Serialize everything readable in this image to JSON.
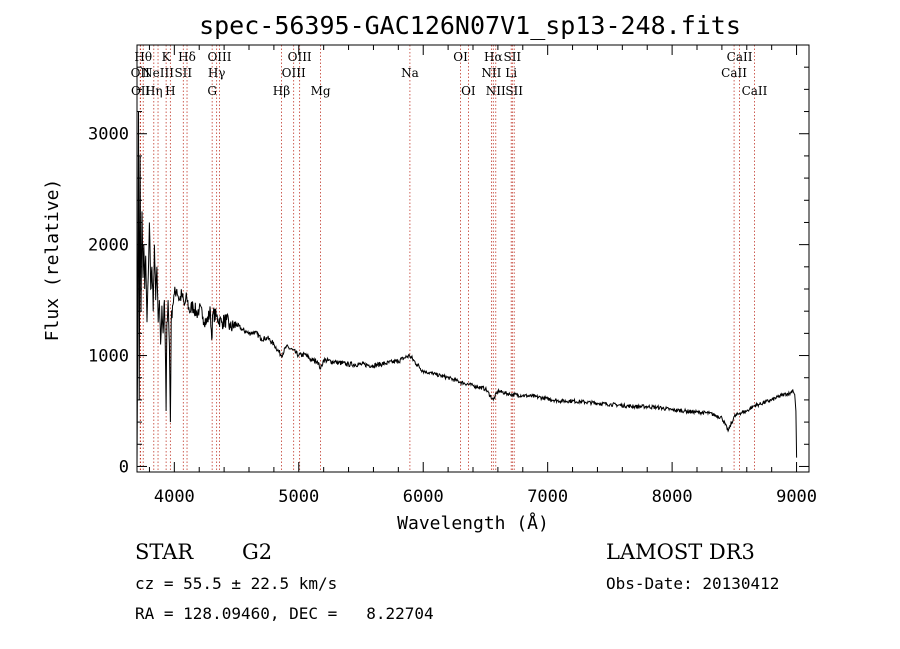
{
  "chart_data": {
    "type": "line",
    "title": "spec-56395-GAC126N07V1_sp13-248.fits",
    "xlabel": "Wavelength (Å)",
    "ylabel": "Flux (relative)",
    "xlim": [
      3700,
      9100
    ],
    "ylim": [
      -50,
      3800
    ],
    "x_ticks": [
      4000,
      5000,
      6000,
      7000,
      8000,
      9000
    ],
    "y_ticks": [
      0,
      1000,
      2000,
      3000
    ],
    "grid": false,
    "series": [
      {
        "name": "spectrum",
        "x": [
          3700,
          3705,
          3712,
          3718,
          3725,
          3732,
          3740,
          3748,
          3755,
          3762,
          3770,
          3780,
          3790,
          3800,
          3810,
          3820,
          3830,
          3840,
          3850,
          3860,
          3870,
          3880,
          3890,
          3900,
          3910,
          3920,
          3930,
          3934,
          3940,
          3950,
          3960,
          3968,
          3975,
          3985,
          4000,
          4020,
          4040,
          4060,
          4080,
          4100,
          4120,
          4150,
          4180,
          4200,
          4230,
          4260,
          4290,
          4300,
          4310,
          4340,
          4380,
          4420,
          4450,
          4500,
          4550,
          4600,
          4650,
          4700,
          4750,
          4800,
          4861,
          4900,
          4950,
          5000,
          5050,
          5100,
          5150,
          5175,
          5200,
          5300,
          5400,
          5500,
          5600,
          5700,
          5800,
          5850,
          5890,
          5950,
          6000,
          6100,
          6200,
          6300,
          6400,
          6500,
          6563,
          6600,
          6700,
          6800,
          6900,
          7000,
          7100,
          7200,
          7300,
          7400,
          7500,
          7600,
          7700,
          7800,
          7900,
          8000,
          8100,
          8200,
          8300,
          8400,
          8450,
          8500,
          8542,
          8600,
          8662,
          8700,
          8800,
          8900,
          8950,
          8970,
          8985,
          8995,
          9000
        ],
        "values": [
          0,
          1000,
          3200,
          600,
          2800,
          1400,
          2300,
          1700,
          2000,
          1600,
          1900,
          1300,
          1700,
          2200,
          1600,
          1800,
          1400,
          2000,
          1500,
          1800,
          1300,
          1500,
          1100,
          1450,
          1200,
          1500,
          900,
          500,
          1300,
          1500,
          1100,
          400,
          1300,
          1450,
          1550,
          1600,
          1500,
          1550,
          1450,
          1520,
          1400,
          1450,
          1380,
          1420,
          1350,
          1300,
          1400,
          1150,
          1380,
          1350,
          1300,
          1320,
          1250,
          1280,
          1230,
          1200,
          1210,
          1150,
          1160,
          1100,
          1000,
          1080,
          1050,
          1000,
          1010,
          960,
          950,
          880,
          960,
          940,
          920,
          920,
          910,
          930,
          950,
          980,
          1000,
          920,
          860,
          830,
          800,
          760,
          730,
          700,
          600,
          680,
          650,
          640,
          630,
          610,
          590,
          590,
          580,
          570,
          560,
          550,
          540,
          540,
          530,
          510,
          500,
          490,
          480,
          440,
          320,
          450,
          480,
          500,
          550,
          560,
          600,
          650,
          660,
          690,
          650,
          500,
          80
        ]
      }
    ],
    "lines": [
      {
        "wl": 3726,
        "label": "OII",
        "row": 2
      },
      {
        "wl": 3729,
        "label": "OII",
        "row": 3
      },
      {
        "wl": 3750,
        "label": "Hθ",
        "row": 1
      },
      {
        "wl": 3835,
        "label": "Hη",
        "row": 3
      },
      {
        "wl": 3869,
        "label": "NeIII",
        "row": 2
      },
      {
        "wl": 3934,
        "label": "K",
        "row": 1
      },
      {
        "wl": 3968,
        "label": "H",
        "row": 3
      },
      {
        "wl": 4072,
        "label": "SII",
        "row": 2
      },
      {
        "wl": 4102,
        "label": "Hδ",
        "row": 1
      },
      {
        "wl": 4304,
        "label": "G",
        "row": 3
      },
      {
        "wl": 4340,
        "label": "Hγ",
        "row": 2
      },
      {
        "wl": 4363,
        "label": "OIII",
        "row": 1
      },
      {
        "wl": 4861,
        "label": "Hβ",
        "row": 3
      },
      {
        "wl": 4959,
        "label": "OIII",
        "row": 2
      },
      {
        "wl": 5007,
        "label": "OIII",
        "row": 1
      },
      {
        "wl": 5175,
        "label": "Mg",
        "row": 3
      },
      {
        "wl": 5893,
        "label": "Na",
        "row": 2
      },
      {
        "wl": 6300,
        "label": "OI",
        "row": 1
      },
      {
        "wl": 6363,
        "label": "OI",
        "row": 3
      },
      {
        "wl": 6548,
        "label": "NII",
        "row": 2
      },
      {
        "wl": 6563,
        "label": "Hα",
        "row": 1
      },
      {
        "wl": 6583,
        "label": "NII",
        "row": 3
      },
      {
        "wl": 6707,
        "label": "Li",
        "row": 2
      },
      {
        "wl": 6716,
        "label": "SII",
        "row": 1
      },
      {
        "wl": 6731,
        "label": "SII",
        "row": 3
      },
      {
        "wl": 8498,
        "label": "CaII",
        "row": 2
      },
      {
        "wl": 8542,
        "label": "CaII",
        "row": 1
      },
      {
        "wl": 8662,
        "label": "CaII",
        "row": 3
      }
    ]
  },
  "info": {
    "class": "STAR",
    "subclass": "G2",
    "survey": "LAMOST DR3",
    "cz": "cz = 55.5 ± 22.5 km/s",
    "obs_date": "Obs-Date: 20130412",
    "coords": "RA = 128.09460, DEC =   8.22704"
  },
  "colors": {
    "spectrum": "#000000",
    "line_marker": "#c0392b",
    "axis": "#000000"
  }
}
